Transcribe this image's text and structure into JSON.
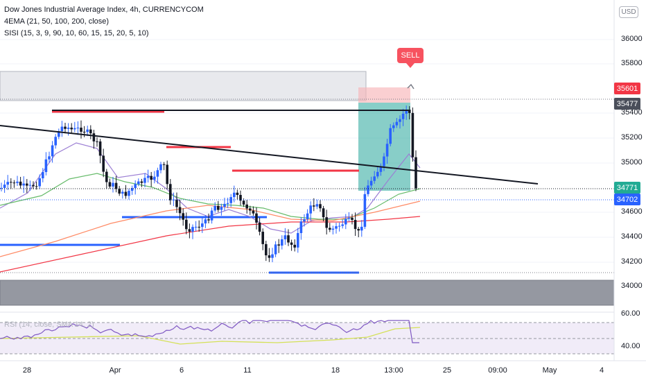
{
  "legend": {
    "title": "Dow Jones Industrial Average Index, 4h, CURRENCYCOM",
    "ema": "4EMA (21, 50, 100, 200, close)",
    "sisi": "SISI (15, 3, 9, 90, 10, 60, 15, 15, 20, 5, 10)"
  },
  "currency": "USD",
  "sell_label": "SELL",
  "price_axis": [
    "36000",
    "35800",
    "35400",
    "35200",
    "35000",
    "34600",
    "34400",
    "34200",
    "34000"
  ],
  "price_tags": [
    {
      "label": "35601",
      "color": "#f23645"
    },
    {
      "label": "35477",
      "color": "#4a4e5a"
    },
    {
      "label": "34771",
      "color": "#22ab94"
    },
    {
      "label": "34702",
      "color": "#2962ff"
    }
  ],
  "time_axis": [
    "28",
    "Apr",
    "6",
    "11",
    "18",
    "13:00",
    "25",
    "09:00",
    "May",
    "4"
  ],
  "rsi": {
    "legend": "RSI (14, close, SMA 14, 2)",
    "ticks": [
      "60.00",
      "40.00"
    ]
  },
  "colors": {
    "up": "#2962ff",
    "down": "#131722",
    "ema21": "#9c7fd4",
    "ema50": "#66bb6a",
    "ema100": "#ff8a65",
    "ema200": "#f23645",
    "resistance": "#f23645",
    "support": "#2962ff",
    "trend": "#131722",
    "profit_zone": "#26a69a",
    "stop_zone": "#f7b5b9"
  }
}
